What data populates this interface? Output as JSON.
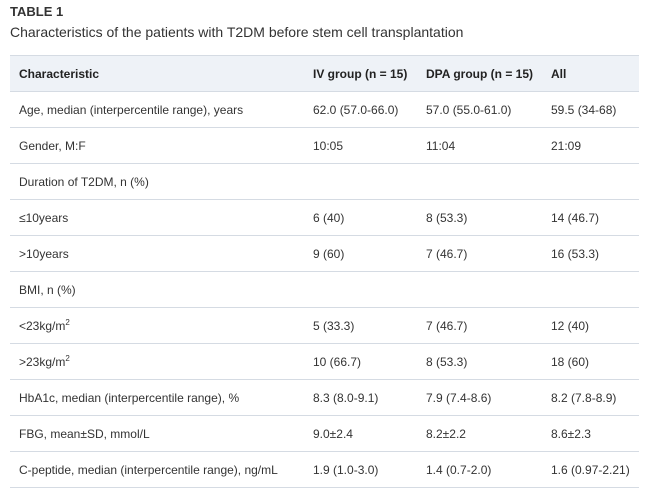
{
  "table_label": "TABLE 1",
  "caption": "Characteristics of the patients with T2DM before stem cell transplantation",
  "headers": [
    "Characteristic",
    "IV group (n = 15)",
    "DPA group (n = 15)",
    "All"
  ],
  "rows": [
    {
      "label": "Age, median (interpercentile range), years",
      "sup": "",
      "iv": "62.0 (57.0-66.0)",
      "dpa": "57.0 (55.0-61.0)",
      "all": "59.5 (34-68)"
    },
    {
      "label": "Gender, M:F",
      "sup": "",
      "iv": "10:05",
      "dpa": "11:04",
      "all": "21:09"
    },
    {
      "label": "Duration of T2DM, n (%)",
      "sup": "",
      "iv": "",
      "dpa": "",
      "all": ""
    },
    {
      "label": "≤10years",
      "sup": "",
      "iv": "6 (40)",
      "dpa": "8 (53.3)",
      "all": "14 (46.7)"
    },
    {
      "label": ">10years",
      "sup": "",
      "iv": "9 (60)",
      "dpa": "7 (46.7)",
      "all": "16 (53.3)"
    },
    {
      "label": "BMI, n (%)",
      "sup": "",
      "iv": "",
      "dpa": "",
      "all": ""
    },
    {
      "label": "<23kg/m",
      "sup": "2",
      "iv": "5 (33.3)",
      "dpa": "7 (46.7)",
      "all": "12 (40)"
    },
    {
      "label": ">23kg/m",
      "sup": "2",
      "iv": "10 (66.7)",
      "dpa": "8 (53.3)",
      "all": "18 (60)"
    },
    {
      "label": "HbA1c, median (interpercentile range), %",
      "sup": "",
      "iv": "8.3 (8.0-9.1)",
      "dpa": "7.9 (7.4-8.6)",
      "all": "8.2 (7.8-8.9)"
    },
    {
      "label": "FBG, mean±SD, mmol/L",
      "sup": "",
      "iv": "9.0±2.4",
      "dpa": "8.2±2.2",
      "all": "8.6±2.3"
    },
    {
      "label": "C-peptide, median (interpercentile range), ng/mL",
      "sup": "",
      "iv": "1.9 (1.0-3.0)",
      "dpa": "1.4 (0.7-2.0)",
      "all": "1.6 (0.97-2.21)"
    }
  ]
}
